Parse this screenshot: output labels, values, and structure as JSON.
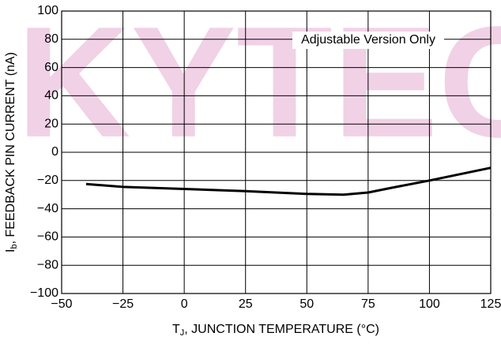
{
  "chart_data": {
    "type": "line",
    "watermark": "KYTEC",
    "annotation": "Adjustable Version Only",
    "x_label": {
      "main": "T",
      "sub": "J",
      "rest": ", JUNCTION TEMPERATURE (°C)"
    },
    "y_label": {
      "main": "I",
      "sub": "b",
      "rest": ", FEEDBACK PIN CURRENT (nA)"
    },
    "x": [
      -40,
      -25,
      0,
      25,
      50,
      65,
      75,
      85,
      100,
      125
    ],
    "series": [
      {
        "name": "Adjustable",
        "color": "#000000",
        "values": [
          -22.5,
          -24.5,
          -26,
          -27.5,
          -29.5,
          -30,
          -28.5,
          -25,
          -20,
          -11
        ]
      }
    ],
    "xlim": [
      -50,
      125
    ],
    "xticks": [
      {
        "value": -50,
        "label": "−50"
      },
      {
        "value": -25,
        "label": "−25"
      },
      0,
      25,
      50,
      75,
      100,
      125
    ],
    "ylim": [
      -100,
      100
    ],
    "yticks": [
      100,
      80,
      60,
      40,
      20,
      0,
      {
        "value": -20,
        "label": "−20"
      },
      {
        "value": -40,
        "label": "−40"
      },
      {
        "value": -60,
        "label": "−60"
      },
      {
        "value": -80,
        "label": "−80"
      },
      {
        "value": -100,
        "label": "−100"
      }
    ],
    "grid": true
  }
}
